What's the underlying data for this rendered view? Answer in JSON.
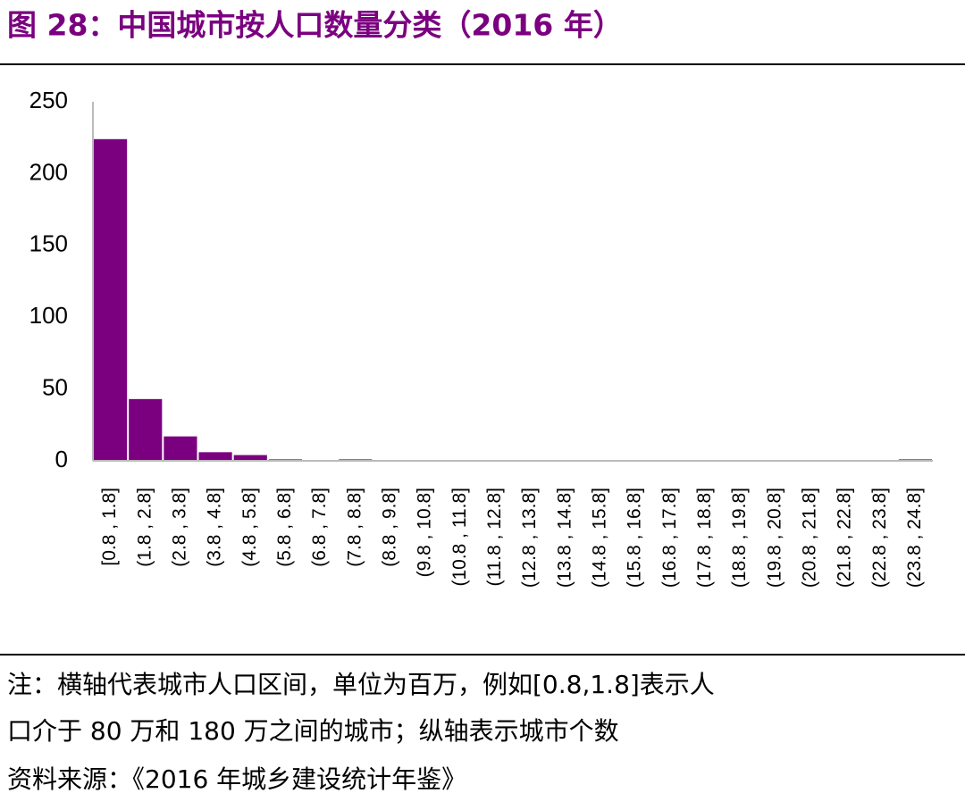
{
  "chart_data": {
    "type": "bar",
    "title": "图 28：中国城市按人口数量分类（2016 年）",
    "notes": [
      "注：横轴代表城市人口区间，单位为百万，例如[0.8,1.8]表示人",
      "口介于 80 万和 180 万之间的城市；纵轴表示城市个数"
    ],
    "source": "资料来源：《2016 年城乡建设统计年鉴》",
    "categories": [
      "[0.8 , 1.8]",
      "(1.8 , 2.8]",
      "(2.8 , 3.8]",
      "(3.8 , 4.8]",
      "(4.8 , 5.8]",
      "(5.8 , 6.8]",
      "(6.8 , 7.8]",
      "(7.8 , 8.8]",
      "(8.8 , 9.8]",
      "(9.8 , 10.8]",
      "(10.8 , 11.8]",
      "(11.8 , 12.8]",
      "(12.8 , 13.8]",
      "(13.8 , 14.8]",
      "(14.8 , 15.8]",
      "(15.8 , 16.8]",
      "(16.8 , 17.8]",
      "(17.8 , 18.8]",
      "(18.8 , 19.8]",
      "(19.8 , 20.8]",
      "(20.8 , 21.8]",
      "(21.8 , 22.8]",
      "(22.8 , 23.8]",
      "(23.8 , 24.8]"
    ],
    "values": [
      224,
      43,
      17,
      6,
      4,
      1,
      0,
      1,
      0,
      0,
      0,
      0,
      0,
      0,
      0,
      0,
      0,
      0,
      0,
      0,
      0,
      0,
      0,
      1
    ],
    "color": "#7b0080",
    "ylim": [
      0,
      250
    ],
    "yticks": [
      0,
      50,
      100,
      150,
      200,
      250
    ],
    "grid": false
  }
}
